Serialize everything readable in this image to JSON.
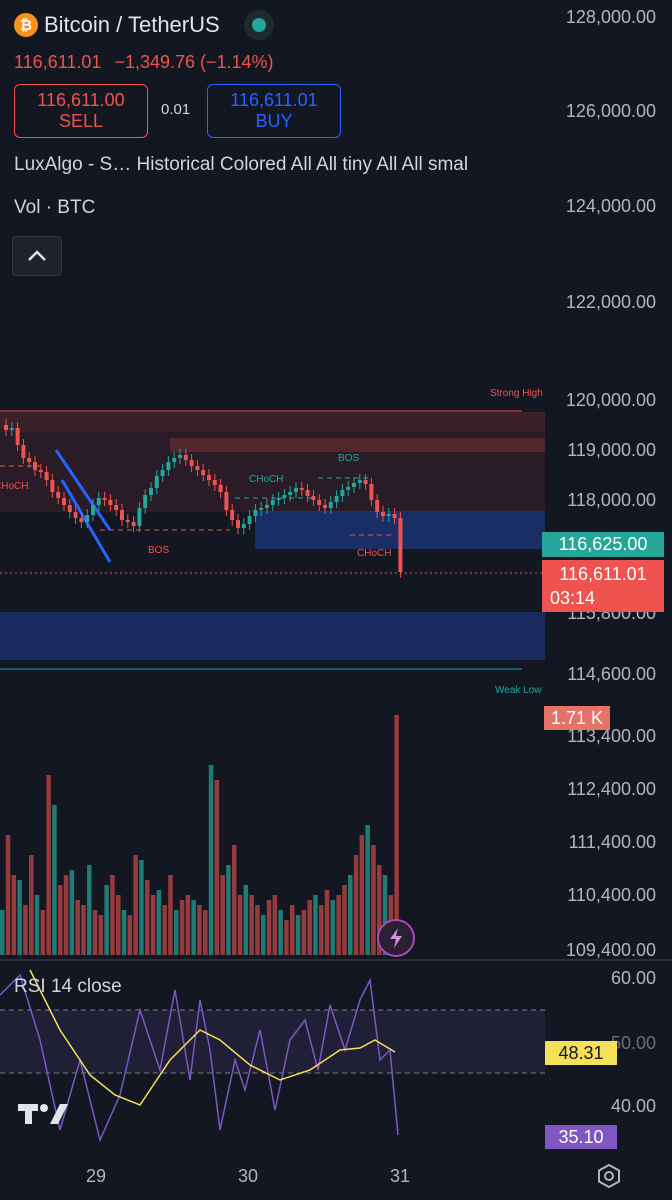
{
  "header": {
    "coin_symbol": "₿",
    "pair_title": "Bitcoin / TetherUS",
    "status_color": "#26a69a",
    "last_price": "116,611.01",
    "change": "−1,349.76 (−1.14%)"
  },
  "trade": {
    "sell_price": "116,611.00",
    "sell_label": "SELL",
    "spread": "0.01",
    "buy_price": "116,611.01",
    "buy_label": "BUY"
  },
  "indicators": {
    "luxalgo_line": "LuxAlgo - S…   Historical Colored All All tiny All All smal",
    "volume_line": "Vol · BTC",
    "collapse_icon": "chevron-up-icon"
  },
  "price_axis": {
    "labels": [
      "128,000.00",
      "126,000.00",
      "124,000.00",
      "122,000.00",
      "120,000.00",
      "119,000.00",
      "118,000.00",
      "115,800.00",
      "114,600.00",
      "113,400.00",
      "112,400.00",
      "111,400.00",
      "110,400.00",
      "109,400.00"
    ],
    "current_tag": "116,625.00",
    "last_tag": "116,611.01",
    "countdown": "03:14",
    "volume_tag": "1.71 K"
  },
  "annotations": {
    "strong_high": "Strong High",
    "weak_low": "Weak Low",
    "choch_left": "CHoCH",
    "bos_left": "BOS",
    "choch_mid": "CHoCH",
    "bos_right": "BOS",
    "choch_right": "CHoCH"
  },
  "rsi": {
    "title": "RSI 14 close",
    "axis": [
      "60.00",
      "50.00",
      "40.00"
    ],
    "ma_value": "48.31",
    "rsi_value": "35.10"
  },
  "time_axis": [
    "29",
    "30",
    "31"
  ],
  "colors": {
    "up": "#26a69a",
    "down": "#ef5350",
    "background": "#131722",
    "accent_blue": "#2962ff",
    "rsi_line": "#7e57c2",
    "rsi_ma": "#f5e05a"
  }
}
